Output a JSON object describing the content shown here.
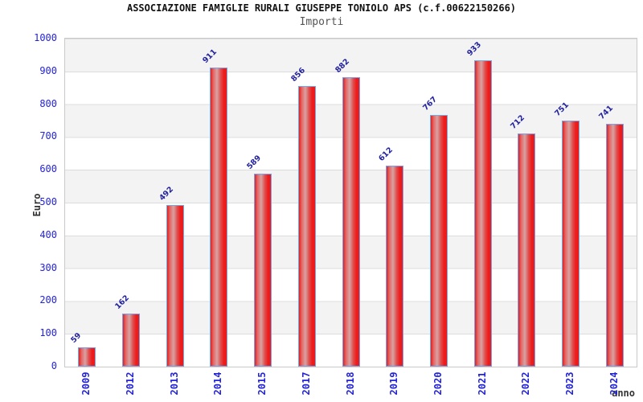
{
  "header": {
    "title": "ASSOCIAZIONE FAMIGLIE RURALI GIUSEPPE TONIOLO APS (c.f.00622150266)",
    "subtitle": "Importi"
  },
  "chart_data": {
    "type": "bar",
    "title": "ASSOCIAZIONE FAMIGLIE RURALI GIUSEPPE TONIOLO APS (c.f.00622150266)",
    "subtitle": "Importi",
    "xlabel": "anno",
    "ylabel": "Euro",
    "categories": [
      "2009",
      "2012",
      "2013",
      "2014",
      "2015",
      "2017",
      "2018",
      "2019",
      "2020",
      "2021",
      "2022",
      "2023",
      "2024"
    ],
    "values": [
      59,
      162,
      492,
      911,
      589,
      856,
      882,
      612,
      767,
      933,
      712,
      751,
      741
    ],
    "ylim": [
      0,
      1000
    ],
    "y_ticks": [
      0,
      100,
      200,
      300,
      400,
      500,
      600,
      700,
      800,
      900,
      1000
    ],
    "grid": "horizontal lines every 100 with alternating gray/white bands",
    "legend": "none",
    "value_labels": "rotated 45deg above each bar",
    "colors": {
      "bar_fill": "#e81b1b",
      "bar_highlight": "#d8a2a2",
      "bar_border": "#74a7ea",
      "axis_tick_label": "#2323d7",
      "value_label": "#22229e",
      "band_gray": "#f3f3f3",
      "grid_line": "#dcdcdc",
      "axis_title": "#333333",
      "title": "#111111",
      "subtitle": "#555555"
    }
  }
}
